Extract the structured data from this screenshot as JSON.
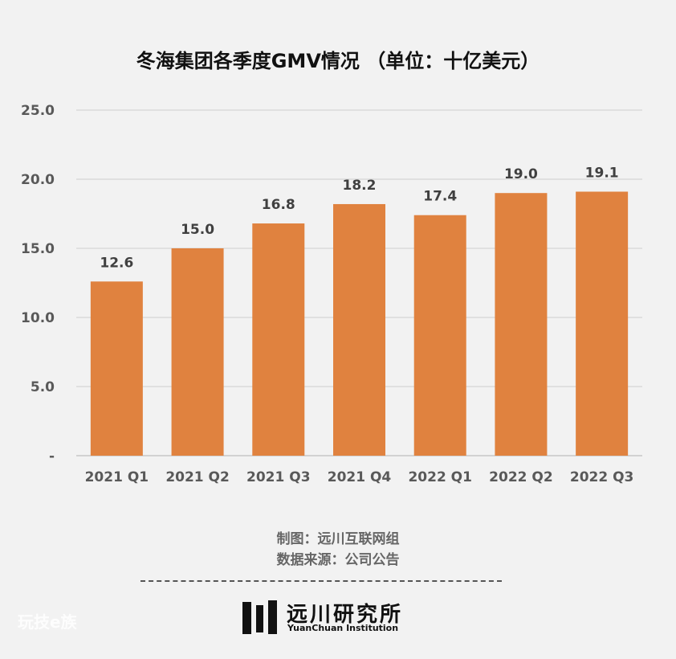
{
  "chart_data": {
    "type": "bar",
    "title": "冬海集团各季度GMV情况 （单位：十亿美元）",
    "categories": [
      "2021 Q1",
      "2021 Q2",
      "2021 Q3",
      "2021 Q4",
      "2022 Q1",
      "2022 Q2",
      "2022 Q3"
    ],
    "values": [
      12.6,
      15.0,
      16.8,
      18.2,
      17.4,
      19.0,
      19.1
    ],
    "data_labels": [
      "12.6",
      "15.0",
      "16.8",
      "18.2",
      "17.4",
      "19.0",
      "19.1"
    ],
    "y_ticks": [
      "-",
      "5.0",
      "10.0",
      "15.0",
      "20.0",
      "25.0"
    ],
    "ylim": [
      0,
      25
    ],
    "grid": true,
    "bar_color": "#e0823f"
  },
  "footer": {
    "maker": "制图：远川互联网组",
    "source": "数据来源：公司公告",
    "logo_cn": "远川研究所",
    "logo_en": "YuanChuan Institution",
    "watermark": "玩技e族"
  }
}
